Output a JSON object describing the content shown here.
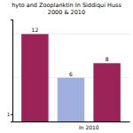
{
  "chart_data": {
    "type": "bar",
    "title": "hyto and Zooplanktin In Siddiqui Huss",
    "subtitle": "2000 & 2010",
    "categories": [
      null,
      null,
      null
    ],
    "values": [
      12,
      6,
      8
    ],
    "colors": [
      "#9b2357",
      "#a0aee0",
      "#9b2357"
    ],
    "annotations": [
      "In 2010"
    ],
    "hlines": [
      12,
      6
    ],
    "ylim": [
      0,
      14
    ],
    "yticks": [
      1
    ],
    "data_labels": true,
    "grid": false
  }
}
